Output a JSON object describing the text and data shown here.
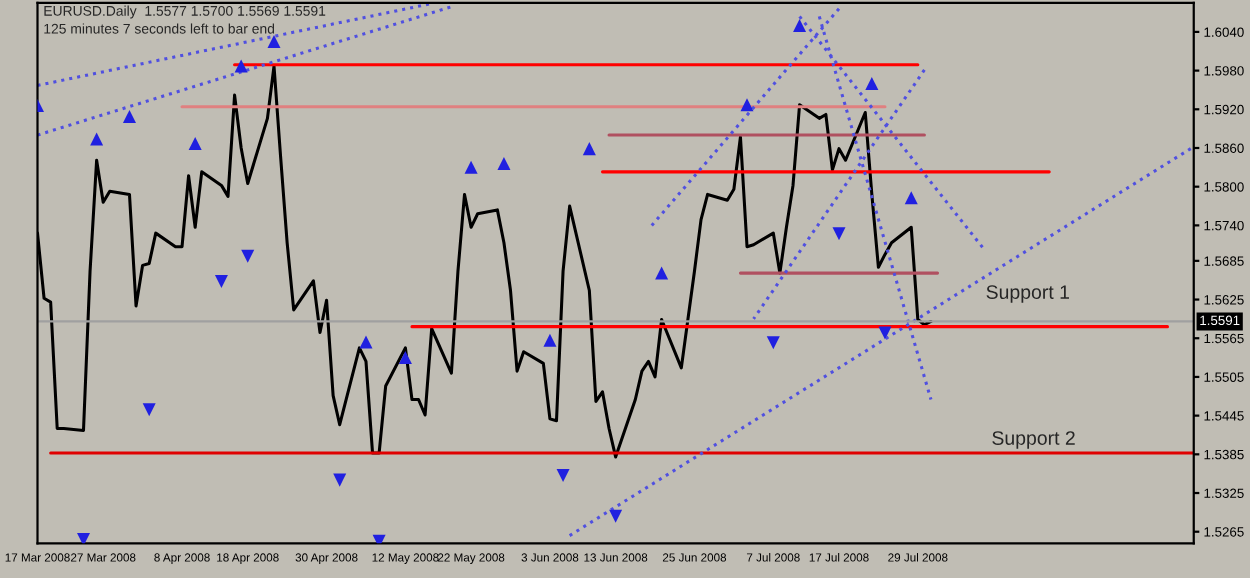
{
  "chart_data": {
    "type": "line",
    "title": "EURUSD.Daily  1.5577 1.5700 1.5569 1.5591",
    "subtitle": "125 minutes 7 seconds left to bar end",
    "xlim": [
      "2008-03-17",
      "2008-09-09"
    ],
    "ylim": [
      1.5247,
      1.6085
    ],
    "xticks": [
      {
        "value": "2008-03-17",
        "label": "17 Mar 2008"
      },
      {
        "value": "2008-03-27",
        "label": "27 Mar 2008"
      },
      {
        "value": "2008-04-08",
        "label": "8 Apr 2008"
      },
      {
        "value": "2008-04-18",
        "label": "18 Apr 2008"
      },
      {
        "value": "2008-04-30",
        "label": "30 Apr 2008"
      },
      {
        "value": "2008-05-12",
        "label": "12 May 2008"
      },
      {
        "value": "2008-05-22",
        "label": "22 May 2008"
      },
      {
        "value": "2008-06-03",
        "label": "3 Jun 2008"
      },
      {
        "value": "2008-06-13",
        "label": "13 Jun 2008"
      },
      {
        "value": "2008-06-25",
        "label": "25 Jun 2008"
      },
      {
        "value": "2008-07-07",
        "label": "7 Jul 2008"
      },
      {
        "value": "2008-07-17",
        "label": "17 Jul 2008"
      },
      {
        "value": "2008-07-29",
        "label": "29 Jul 2008"
      }
    ],
    "yticks": [
      {
        "value": 1.604,
        "label": "1.6040"
      },
      {
        "value": 1.598,
        "label": "1.5980"
      },
      {
        "value": 1.592,
        "label": "1.5920"
      },
      {
        "value": 1.586,
        "label": "1.5860"
      },
      {
        "value": 1.58,
        "label": "1.5800"
      },
      {
        "value": 1.574,
        "label": "1.5740"
      },
      1.5685,
      1.5625,
      1.5565,
      1.5505,
      1.5445,
      1.5385,
      1.5325,
      1.5265
    ],
    "grid": false,
    "ref_lines": [
      {
        "axis": "y",
        "value": 1.5591,
        "label": "1.5591",
        "color": "#a0a0a0"
      }
    ],
    "annotations": [
      "Support 1",
      "Support 2"
    ],
    "series": [
      {
        "type": "line",
        "color": "#000000",
        "marker": "none",
        "line_style": "solid",
        "x": [
          "2008-03-17",
          "2008-03-18",
          "2008-03-19",
          "2008-03-20",
          "2008-03-21",
          "2008-03-24",
          "2008-03-25",
          "2008-03-26",
          "2008-03-27",
          "2008-03-28",
          "2008-03-31",
          "2008-04-01",
          "2008-04-02",
          "2008-04-03",
          "2008-04-04",
          "2008-04-07",
          "2008-04-08",
          "2008-04-09",
          "2008-04-10",
          "2008-04-11",
          "2008-04-14",
          "2008-04-15",
          "2008-04-16",
          "2008-04-17",
          "2008-04-18",
          "2008-04-21",
          "2008-04-22",
          "2008-04-23",
          "2008-04-24",
          "2008-04-25",
          "2008-04-28",
          "2008-04-29",
          "2008-04-30",
          "2008-05-01",
          "2008-05-02",
          "2008-05-05",
          "2008-05-06",
          "2008-05-07",
          "2008-05-08",
          "2008-05-09",
          "2008-05-12",
          "2008-05-13",
          "2008-05-14",
          "2008-05-15",
          "2008-05-16",
          "2008-05-19",
          "2008-05-20",
          "2008-05-21",
          "2008-05-22",
          "2008-05-23",
          "2008-05-26",
          "2008-05-27",
          "2008-05-28",
          "2008-05-29",
          "2008-05-30",
          "2008-06-02",
          "2008-06-03",
          "2008-06-04",
          "2008-06-05",
          "2008-06-06",
          "2008-06-09",
          "2008-06-10",
          "2008-06-11",
          "2008-06-12",
          "2008-06-13",
          "2008-06-16",
          "2008-06-17",
          "2008-06-18",
          "2008-06-19",
          "2008-06-20",
          "2008-06-23",
          "2008-06-24",
          "2008-06-25",
          "2008-06-26",
          "2008-06-27",
          "2008-06-30",
          "2008-07-01",
          "2008-07-02",
          "2008-07-03",
          "2008-07-04",
          "2008-07-07",
          "2008-07-08",
          "2008-07-09",
          "2008-07-10",
          "2008-07-11",
          "2008-07-14",
          "2008-07-15",
          "2008-07-16",
          "2008-07-17",
          "2008-07-18",
          "2008-07-21",
          "2008-07-22",
          "2008-07-23",
          "2008-07-24",
          "2008-07-25",
          "2008-07-28",
          "2008-07-29",
          "2008-07-30",
          "2008-07-31"
        ],
        "values": [
          1.5728,
          1.5627,
          1.5621,
          1.5425,
          1.5425,
          1.5422,
          1.5669,
          1.5841,
          1.5776,
          1.5793,
          1.5788,
          1.5615,
          1.5678,
          1.5681,
          1.5728,
          1.5707,
          1.5707,
          1.5817,
          1.5737,
          1.5823,
          1.5802,
          1.5785,
          1.5942,
          1.586,
          1.5805,
          1.5906,
          1.5987,
          1.5847,
          1.5713,
          1.5609,
          1.5654,
          1.5574,
          1.5624,
          1.5476,
          1.5431,
          1.555,
          1.5529,
          1.5387,
          1.5387,
          1.5491,
          1.555,
          1.547,
          1.547,
          1.5446,
          1.558,
          1.5511,
          1.5669,
          1.5788,
          1.5737,
          1.5758,
          1.5764,
          1.5713,
          1.5639,
          1.5514,
          1.5544,
          1.5526,
          1.544,
          1.5437,
          1.5669,
          1.577,
          1.5639,
          1.5467,
          1.5482,
          1.5425,
          1.5381,
          1.547,
          1.5514,
          1.5529,
          1.5505,
          1.5594,
          1.5519,
          1.5594,
          1.5669,
          1.5749,
          1.5788,
          1.5779,
          1.5796,
          1.5877,
          1.5707,
          1.571,
          1.5728,
          1.5666,
          1.5737,
          1.5802,
          1.5927,
          1.5906,
          1.5912,
          1.5826,
          1.5859,
          1.5841,
          1.5915,
          1.5788,
          1.5675,
          1.5695,
          1.5713,
          1.5737,
          1.5594,
          1.5586,
          1.5591
        ]
      },
      {
        "type": "line",
        "color": "#ff0000",
        "marker": "none",
        "line_style": "solid",
        "x": [
          "2008-04-16",
          "2008-07-29"
        ],
        "values": [
          1.5989,
          1.5989
        ]
      },
      {
        "type": "line",
        "color": "#e08080",
        "marker": "none",
        "line_style": "solid",
        "x": [
          "2008-04-08",
          "2008-07-24"
        ],
        "values": [
          1.5924,
          1.5924
        ]
      },
      {
        "type": "line",
        "color": "#b05060",
        "marker": "none",
        "line_style": "solid",
        "x": [
          "2008-06-12",
          "2008-07-30"
        ],
        "values": [
          1.588,
          1.588
        ]
      },
      {
        "type": "line",
        "color": "#ff0000",
        "marker": "none",
        "line_style": "solid",
        "x": [
          "2008-06-11",
          "2008-08-18"
        ],
        "values": [
          1.5823,
          1.5823
        ]
      },
      {
        "type": "line",
        "color": "#b05060",
        "marker": "none",
        "line_style": "solid",
        "x": [
          "2008-07-02",
          "2008-08-01"
        ],
        "values": [
          1.5666,
          1.5666
        ]
      },
      {
        "type": "line",
        "color": "#ff0000",
        "marker": "none",
        "line_style": "solid",
        "x": [
          "2008-05-13",
          "2008-09-05"
        ],
        "values": [
          1.5583,
          1.5583
        ]
      },
      {
        "type": "line",
        "color": "#e00000",
        "marker": "none",
        "line_style": "solid",
        "x": [
          "2008-03-19",
          "2008-09-09"
        ],
        "values": [
          1.5387,
          1.5387
        ]
      },
      {
        "type": "line",
        "color": "#5050e0",
        "marker": "none",
        "line_style": "dotted",
        "x": [
          "2008-03-17",
          "2008-05-16"
        ],
        "values": [
          1.5957,
          1.6084
        ]
      },
      {
        "type": "line",
        "color": "#5050e0",
        "marker": "none",
        "line_style": "dotted",
        "x": [
          "2008-03-17",
          "2008-05-19"
        ],
        "values": [
          1.588,
          1.6079
        ]
      },
      {
        "type": "line",
        "color": "#5050e0",
        "marker": "none",
        "line_style": "dotted",
        "x": [
          "2008-07-11",
          "2008-08-08"
        ],
        "values": [
          1.6064,
          1.5704
        ]
      },
      {
        "type": "line",
        "color": "#5050e0",
        "marker": "none",
        "line_style": "dotted",
        "x": [
          "2008-07-17",
          "2008-06-18"
        ],
        "values": [
          1.6076,
          1.5734
        ]
      },
      {
        "type": "line",
        "color": "#5050e0",
        "marker": "none",
        "line_style": "dotted",
        "x": [
          "2008-07-30",
          "2008-07-04"
        ],
        "values": [
          1.5981,
          1.5595
        ]
      },
      {
        "type": "line",
        "color": "#5050e0",
        "marker": "none",
        "line_style": "dotted",
        "x": [
          "2008-07-14",
          "2008-07-31"
        ],
        "values": [
          1.6064,
          1.547
        ]
      },
      {
        "type": "line",
        "color": "#5050e0",
        "marker": "none",
        "line_style": "dotted",
        "x": [
          "2008-06-06",
          "2008-09-09"
        ],
        "values": [
          1.5259,
          1.5862
        ]
      },
      {
        "type": "scatter",
        "color": "#2020e0",
        "marker": "triangle",
        "x": [
          "2008-03-17",
          "2008-03-26",
          "2008-03-31",
          "2008-04-10",
          "2008-04-17",
          "2008-04-22",
          "2008-05-06",
          "2008-05-12",
          "2008-05-22",
          "2008-05-27",
          "2008-06-03",
          "2008-06-09",
          "2008-06-20",
          "2008-07-03",
          "2008-07-11",
          "2008-07-22",
          "2008-07-28"
        ],
        "values": [
          1.5926,
          1.5874,
          1.5909,
          1.5867,
          1.5987,
          1.6025,
          1.5559,
          1.5535,
          1.583,
          1.5836,
          1.5562,
          1.5859,
          1.5666,
          1.5927,
          1.605,
          1.596,
          1.5783
        ]
      },
      {
        "type": "scatter",
        "color": "#2020e0",
        "marker": "triangle_down",
        "x": [
          "2008-03-24",
          "2008-04-03",
          "2008-04-14",
          "2008-04-18",
          "2008-05-02",
          "2008-05-08",
          "2008-06-05",
          "2008-06-13",
          "2008-07-07",
          "2008-07-17",
          "2008-07-24"
        ],
        "values": [
          1.5253,
          1.5454,
          1.5653,
          1.5692,
          1.5345,
          1.525,
          1.5352,
          1.5289,
          1.5558,
          1.5727,
          1.5573
        ]
      }
    ]
  }
}
